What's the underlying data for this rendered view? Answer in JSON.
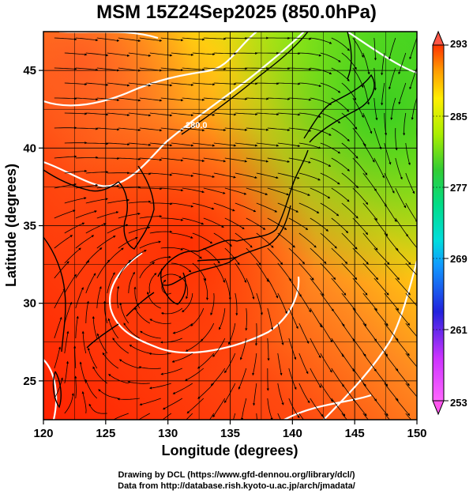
{
  "title": "MSM 15Z24Sep2025 (850.0hPa)",
  "axes": {
    "xlabel": "Longitude (degrees)",
    "ylabel": "Latitude  (degrees)",
    "x_ticks": [
      120,
      125,
      130,
      135,
      140,
      145,
      150
    ],
    "y_ticks": [
      25,
      30,
      35,
      40,
      45
    ],
    "xlim": [
      120,
      150
    ],
    "ylim": [
      22.5,
      47.5
    ]
  },
  "colorbar": {
    "ticks": [
      293,
      285,
      277,
      269,
      261,
      253
    ],
    "min": 253,
    "max": 293,
    "colors": [
      "#ff66ff",
      "#2222dd",
      "#00bfff",
      "#00dd88",
      "#33cc33",
      "#aaee00",
      "#ffee00",
      "#ff9900",
      "#ff3300"
    ]
  },
  "contour_labels": [
    "280.0"
  ],
  "colors": {
    "frame": "#000000",
    "coast": "#000000",
    "contour": "#ffffff"
  },
  "footer": {
    "line1": "Drawing by DCL (https://www.gfd-dennou.org/library/dcl/)",
    "line2": "Data from http://database.rish.kyoto-u.ac.jp/arch/jmadata/"
  }
}
